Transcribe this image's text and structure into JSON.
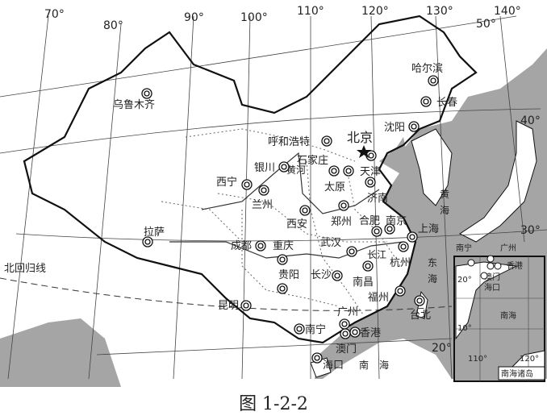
{
  "caption": "图 1-2-2",
  "capital": "北京",
  "cities": [
    "哈尔滨",
    "长春",
    "乌鲁木齐",
    "沈阳",
    "呼和浩特",
    "石家庄",
    "天津",
    "银川",
    "西宁",
    "兰州",
    "太原",
    "济南",
    "西安",
    "郑州",
    "合肥",
    "南京",
    "上海",
    "拉萨",
    "成都",
    "重庆",
    "武汉",
    "杭州",
    "贵阳",
    "长沙",
    "南昌",
    "福州",
    "台北",
    "昆明",
    "南宁",
    "广州",
    "香港",
    "澳门",
    "海口"
  ],
  "water_labels": {
    "yellow_sea_1": "黄",
    "yellow_sea_2": "海",
    "east_sea_1": "东",
    "east_sea_2": "海",
    "south_sea_1": "南",
    "south_sea_2": "海",
    "yellow_river": "黄河",
    "yangtze": "长江"
  },
  "tropic": "北回归线",
  "longitudes": [
    "70°",
    "80°",
    "90°",
    "100°",
    "110°",
    "120°",
    "130°",
    "140°"
  ],
  "latitudes": [
    "50°",
    "40°",
    "30°",
    "20°"
  ],
  "inset": {
    "title": "南海诸岛",
    "cities": [
      "南宁",
      "广州",
      "香港",
      "澳门",
      "海口"
    ],
    "sea": "南海",
    "lat_labels": [
      "20°",
      "10°"
    ],
    "lon_labels": [
      "110°",
      "120°"
    ]
  },
  "colors": {
    "sea": "#9a9a9a",
    "land": "#ffffff",
    "border": "#111111"
  }
}
